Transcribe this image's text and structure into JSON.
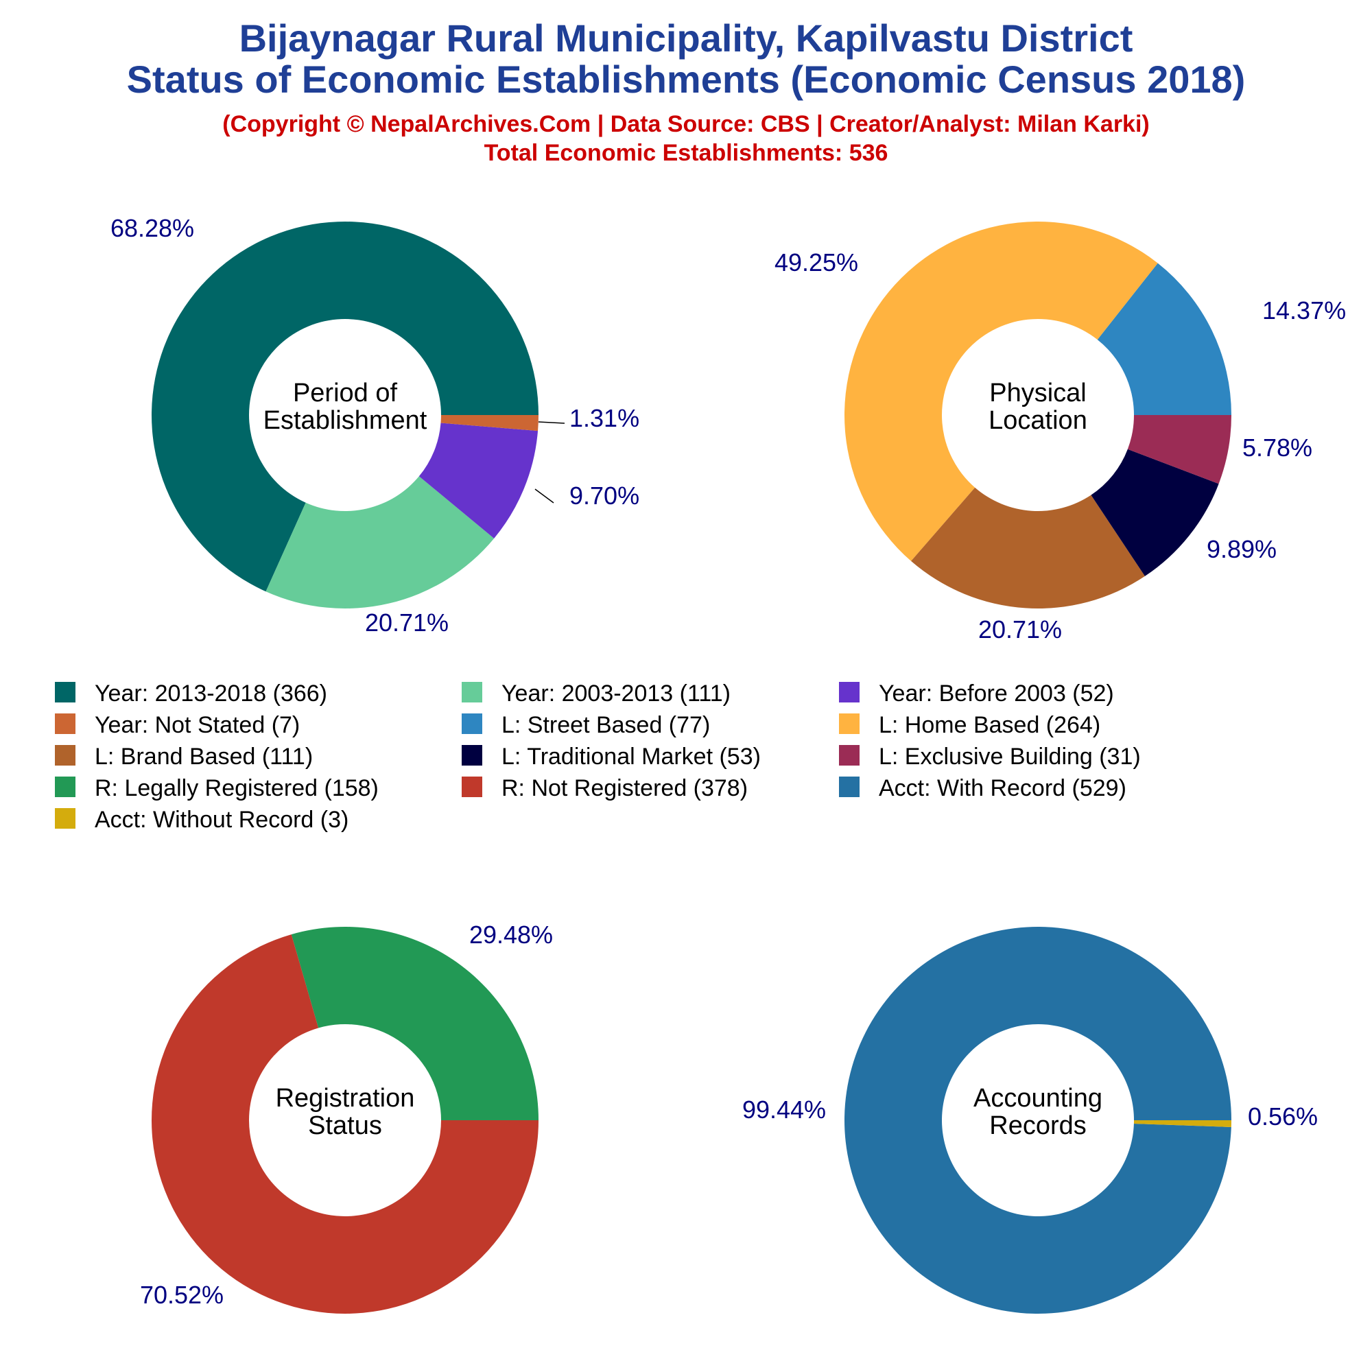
{
  "header": {
    "title_line1": "Bijaynagar Rural Municipality, Kapilvastu District",
    "title_line2": "Status of Economic Establishments (Economic Census 2018)",
    "credit": "(Copyright © NepalArchives.Com | Data Source: CBS | Creator/Analyst: Milan Karki)",
    "total": "Total Economic Establishments: 536"
  },
  "colors": {
    "title": "#1f3f96",
    "subtitle": "#cc0000",
    "percent_labels": "#000080"
  },
  "chart_data": [
    {
      "type": "pie",
      "center_label": [
        "Period of",
        "Establishment"
      ],
      "slices": [
        {
          "label": "Year: 2013-2018",
          "value": 366,
          "percent": "68.28%",
          "color": "#006666"
        },
        {
          "label": "Year: 2003-2013",
          "value": 111,
          "percent": "20.71%",
          "color": "#66cc99"
        },
        {
          "label": "Year: Before 2003",
          "value": 52,
          "percent": "9.70%",
          "color": "#6633cc"
        },
        {
          "label": "Year: Not Stated",
          "value": 7,
          "percent": "1.31%",
          "color": "#cc6633"
        }
      ]
    },
    {
      "type": "pie",
      "center_label": [
        "Physical",
        "Location"
      ],
      "slices": [
        {
          "label": "L: Street Based",
          "value": 77,
          "percent": "14.37%",
          "color": "#2e86c1"
        },
        {
          "label": "L: Home Based",
          "value": 264,
          "percent": "49.25%",
          "color": "#ffb340"
        },
        {
          "label": "L: Brand Based",
          "value": 111,
          "percent": "20.71%",
          "color": "#b0632b"
        },
        {
          "label": "L: Traditional Market",
          "value": 53,
          "percent": "9.89%",
          "color": "#000040"
        },
        {
          "label": "L: Exclusive Building",
          "value": 31,
          "percent": "5.78%",
          "color": "#9b2c55"
        }
      ]
    },
    {
      "type": "pie",
      "center_label": [
        "Registration",
        "Status"
      ],
      "slices": [
        {
          "label": "R: Legally Registered",
          "value": 158,
          "percent": "29.48%",
          "color": "#229955"
        },
        {
          "label": "R: Not Registered",
          "value": 378,
          "percent": "70.52%",
          "color": "#c0392b"
        }
      ]
    },
    {
      "type": "pie",
      "center_label": [
        "Accounting",
        "Records"
      ],
      "slices": [
        {
          "label": "Acct: With Record",
          "value": 529,
          "percent": "99.44%",
          "color": "#2471a3"
        },
        {
          "label": "Acct: Without Record",
          "value": 3,
          "percent": "0.56%",
          "color": "#d4ac0d"
        }
      ]
    }
  ],
  "legend": [
    {
      "text": "Year: 2013-2018 (366)",
      "color": "#006666"
    },
    {
      "text": "Year: 2003-2013 (111)",
      "color": "#66cc99"
    },
    {
      "text": "Year: Before 2003 (52)",
      "color": "#6633cc"
    },
    {
      "text": "Year: Not Stated (7)",
      "color": "#cc6633"
    },
    {
      "text": "L: Street Based (77)",
      "color": "#2e86c1"
    },
    {
      "text": "L: Home Based (264)",
      "color": "#ffb340"
    },
    {
      "text": "L: Brand Based (111)",
      "color": "#b0632b"
    },
    {
      "text": "L: Traditional Market (53)",
      "color": "#000040"
    },
    {
      "text": "L: Exclusive Building (31)",
      "color": "#9b2c55"
    },
    {
      "text": "R: Legally Registered (158)",
      "color": "#229955"
    },
    {
      "text": "R: Not Registered (378)",
      "color": "#c0392b"
    },
    {
      "text": "Acct: With Record (529)",
      "color": "#2471a3"
    },
    {
      "text": "Acct: Without Record (3)",
      "color": "#d4ac0d"
    }
  ]
}
